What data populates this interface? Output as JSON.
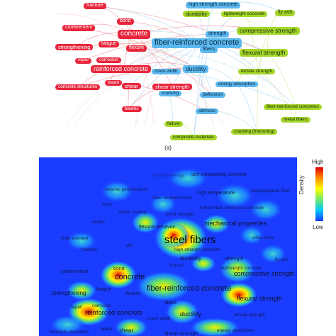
{
  "panel_a_caption": "(a)",
  "colors": {
    "red": "#e8263c",
    "green": "#a5d62a",
    "blue": "#5cb8ee",
    "violet": "#a86ee0",
    "heat_background": "#1a3cff"
  },
  "network_labels": [
    {
      "id": "nl-fracture",
      "text": "fracture",
      "cluster": "red"
    },
    {
      "id": "nl-bond",
      "text": "bond",
      "cluster": "red"
    },
    {
      "id": "nl-confinement",
      "text": "confinement",
      "cluster": "red"
    },
    {
      "id": "nl-concrete",
      "text": "concrete",
      "cluster": "red"
    },
    {
      "id": "nl-strengthening",
      "text": "strengthening",
      "cluster": "red"
    },
    {
      "id": "nl-fatigue",
      "text": "fatigue",
      "cluster": "red"
    },
    {
      "id": "nl-flexure",
      "text": "flexure",
      "cluster": "red"
    },
    {
      "id": "nl-repair",
      "text": "repair",
      "cluster": "red"
    },
    {
      "id": "nl-corrosion",
      "text": "corrosion",
      "cluster": "red"
    },
    {
      "id": "nl-reinforced-concrete",
      "text": "reinforced concrete",
      "cluster": "red"
    },
    {
      "id": "nl-concrete-structures",
      "text": "concrete structures",
      "cluster": "red"
    },
    {
      "id": "nl-beam",
      "text": "beam",
      "cluster": "red"
    },
    {
      "id": "nl-shear",
      "text": "shear",
      "cluster": "red"
    },
    {
      "id": "nl-beams",
      "text": "beams",
      "cluster": "red"
    },
    {
      "id": "nl-high-strength",
      "text": "high strength concrete",
      "cluster": "blue"
    },
    {
      "id": "nl-durability",
      "text": "durability",
      "cluster": "green"
    },
    {
      "id": "nl-lightweight",
      "text": "lightweight concrete",
      "cluster": "green"
    },
    {
      "id": "nl-fly-ash",
      "text": "fly ash",
      "cluster": "green"
    },
    {
      "id": "nl-strength",
      "text": "strength",
      "cluster": "blue"
    },
    {
      "id": "nl-compressive",
      "text": "compressive strength",
      "cluster": "green"
    },
    {
      "id": "nl-frc",
      "text": "fiber-reinforced concrete",
      "cluster": "blue"
    },
    {
      "id": "nl-fibers",
      "text": "fibers",
      "cluster": "blue"
    },
    {
      "id": "nl-flexural",
      "text": "flexural strength",
      "cluster": "green"
    },
    {
      "id": "nl-crack-width",
      "text": "crack width",
      "cluster": "blue"
    },
    {
      "id": "nl-ductility",
      "text": "ductility",
      "cluster": "blue"
    },
    {
      "id": "nl-tensile",
      "text": "tensile strength",
      "cluster": "green"
    },
    {
      "id": "nl-shear-strength",
      "text": "shear strength",
      "cluster": "red"
    },
    {
      "id": "nl-energy",
      "text": "energy absorption",
      "cluster": "blue"
    },
    {
      "id": "nl-cracking",
      "text": "cracking",
      "cluster": "blue"
    },
    {
      "id": "nl-deflection",
      "text": "deflection",
      "cluster": "blue"
    },
    {
      "id": "nl-frc2",
      "text": "fiber-reinforced concretes",
      "cluster": "green"
    },
    {
      "id": "nl-stiffness",
      "text": "stiffness",
      "cluster": "blue"
    },
    {
      "id": "nl-failure",
      "text": "failure",
      "cluster": "green"
    },
    {
      "id": "nl-metal-fibers",
      "text": "metal fibers",
      "cluster": "green"
    },
    {
      "id": "nl-composite",
      "text": "composite materials",
      "cluster": "green"
    },
    {
      "id": "nl-cracking-fr",
      "text": "cracking (fracturing)",
      "cluster": "green"
    }
  ],
  "density_labels": [
    {
      "id": "dl-fracture-energy",
      "text": "fracture energy"
    },
    {
      "id": "dl-scc",
      "text": "self-compacting concrete"
    },
    {
      "id": "dl-seismic",
      "text": "seismic performance"
    },
    {
      "id": "dl-fiber-reinf",
      "text": "fiber reinforcement"
    },
    {
      "id": "dl-high-temp",
      "text": "high temperature"
    },
    {
      "id": "dl-pp-fiber",
      "text": "polypropylene fiber"
    },
    {
      "id": "dl-uhpc",
      "text": "uhpc"
    },
    {
      "id": "dl-cyclic",
      "text": "cyclic loading"
    },
    {
      "id": "dl-hybrid",
      "text": "hybrid fiber-reinforced concrete"
    },
    {
      "id": "dl-bond-strength",
      "text": "bond strength"
    },
    {
      "id": "dl-flex-behavior",
      "text": "flexural behavior"
    },
    {
      "id": "dl-mech-props",
      "text": "mechanical properties"
    },
    {
      "id": "dl-uhpfrc",
      "text": "uhpfrc"
    },
    {
      "id": "dl-fem",
      "text": "finite element"
    },
    {
      "id": "dl-silica",
      "text": "silica fume"
    },
    {
      "id": "dl-sfrc",
      "text": "sfrc"
    },
    {
      "id": "dl-steel-fibers",
      "text": "steel fibers"
    },
    {
      "id": "dl-fracture",
      "text": "fracture"
    },
    {
      "id": "dl-hsc",
      "text": "high strength concrete"
    },
    {
      "id": "dl-durability",
      "text": "durability"
    },
    {
      "id": "dl-impact",
      "text": "impact"
    },
    {
      "id": "dl-fly-ash",
      "text": "fly ash"
    },
    {
      "id": "dl-strength",
      "text": "strength"
    },
    {
      "id": "dl-lwc",
      "text": "lightweight concrete"
    },
    {
      "id": "dl-confinement",
      "text": "confinement"
    },
    {
      "id": "dl-bond",
      "text": "bond"
    },
    {
      "id": "dl-concrete",
      "text": "concrete"
    },
    {
      "id": "dl-compressive",
      "text": "compressive strength"
    },
    {
      "id": "dl-frc",
      "text": "fiber-reinforced concrete"
    },
    {
      "id": "dl-strengthening",
      "text": "strengthening"
    },
    {
      "id": "dl-fatigue",
      "text": "fatigue"
    },
    {
      "id": "dl-flexure",
      "text": "flexure"
    },
    {
      "id": "dl-flexural",
      "text": "flexural strength"
    },
    {
      "id": "dl-repair",
      "text": "repair"
    },
    {
      "id": "dl-corrosion",
      "text": "corrosion"
    },
    {
      "id": "dl-fibers",
      "text": "fibers"
    },
    {
      "id": "dl-rc",
      "text": "reinforced concrete"
    },
    {
      "id": "dl-crack-width",
      "text": "crack width"
    },
    {
      "id": "dl-ductility",
      "text": "ductility"
    },
    {
      "id": "dl-tensile",
      "text": "tensile strength"
    },
    {
      "id": "dl-concrete-structures",
      "text": "concrete structures"
    },
    {
      "id": "dl-beam",
      "text": "beam"
    },
    {
      "id": "dl-shear",
      "text": "shear"
    },
    {
      "id": "dl-shear-strength",
      "text": "shear strength"
    },
    {
      "id": "dl-energy",
      "text": "energy absorption"
    }
  ],
  "colorbar": {
    "high_label": "High",
    "low_label": "Low",
    "title": "Density"
  }
}
